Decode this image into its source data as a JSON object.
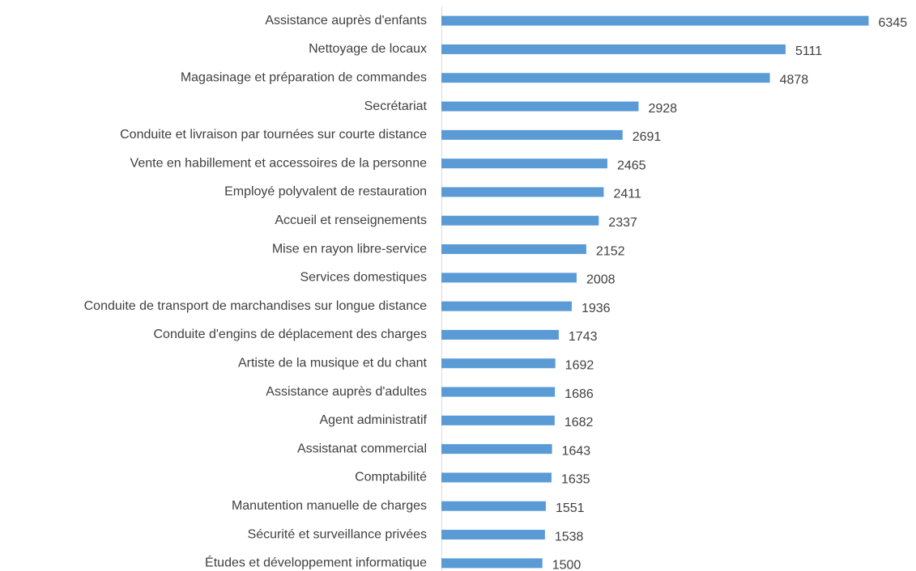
{
  "chart_data": {
    "type": "bar",
    "orientation": "horizontal",
    "categories": [
      "Assistance auprès d'enfants",
      "Nettoyage de locaux",
      "Magasinage et préparation de commandes",
      "Secrétariat",
      "Conduite et livraison par tournées sur courte distance",
      "Vente en habillement et accessoires de la personne",
      "Employé polyvalent de restauration",
      "Accueil et renseignements",
      "Mise en rayon libre-service",
      "Services domestiques",
      "Conduite de transport de marchandises sur longue distance",
      "Conduite d'engins de déplacement des charges",
      "Artiste de la musique et du chant",
      "Assistance auprès d'adultes",
      "Agent administratif",
      "Assistanat commercial",
      "Comptabilité",
      "Manutention manuelle de charges",
      "Sécurité et surveillance privées",
      "Études et développement informatique"
    ],
    "values": [
      6345,
      5111,
      4878,
      2928,
      2691,
      2465,
      2411,
      2337,
      2152,
      2008,
      1936,
      1743,
      1692,
      1686,
      1682,
      1643,
      1635,
      1551,
      1538,
      1500
    ],
    "color": "#5b9bd5",
    "xlim": [
      0,
      7000
    ]
  }
}
